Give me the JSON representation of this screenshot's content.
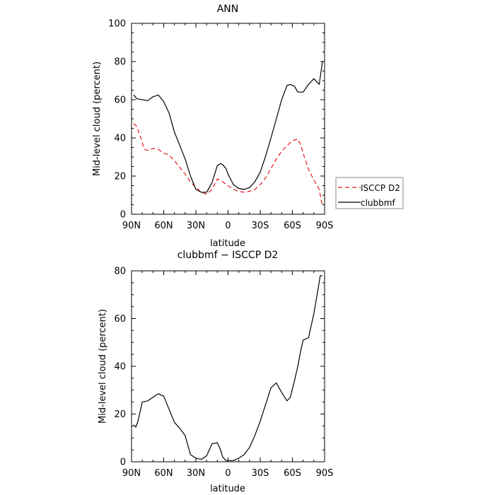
{
  "chart_data": [
    {
      "type": "line",
      "title": "ANN",
      "xlabel": "latitude",
      "ylabel": "Mid-level cloud (percent)",
      "xlim": [
        90,
        -90
      ],
      "ylim": [
        0,
        100
      ],
      "x_ticks": [
        90,
        60,
        30,
        0,
        -30,
        -60,
        -90
      ],
      "x_tick_labels": [
        "90N",
        "60N",
        "30N",
        "0",
        "30S",
        "60S",
        "90S"
      ],
      "y_ticks": [
        0,
        20,
        40,
        60,
        80,
        100
      ],
      "y_tick_labels": [
        "0",
        "20",
        "40",
        "60",
        "80",
        "100"
      ],
      "legend_position": "outside-right",
      "series": [
        {
          "name": "ISCCP D2",
          "color": "#e8141b",
          "dash": "dashed",
          "x": [
            88,
            85,
            82,
            78,
            75,
            70,
            65,
            60,
            55,
            50,
            45,
            40,
            35,
            30,
            25,
            20,
            15,
            10,
            5,
            0,
            -5,
            -10,
            -15,
            -20,
            -25,
            -30,
            -35,
            -40,
            -45,
            -50,
            -55,
            -60,
            -65,
            -68,
            -70,
            -75,
            -80,
            -85,
            -88
          ],
          "y": [
            47.5,
            46,
            41,
            34,
            33.5,
            34.5,
            34,
            32,
            31,
            28,
            24.5,
            21,
            17,
            14,
            11.5,
            10.5,
            13,
            18.5,
            17,
            15,
            13,
            12,
            11.5,
            12,
            13,
            15.5,
            19,
            24,
            29,
            33,
            36,
            38.5,
            39.5,
            36,
            32,
            23.5,
            18,
            13,
            4
          ]
        },
        {
          "name": "clubbmf",
          "color": "#000000",
          "dash": "solid",
          "x": [
            88,
            85,
            80,
            75,
            70,
            65,
            60,
            55,
            50,
            45,
            40,
            35,
            30,
            25,
            20,
            15,
            10,
            7,
            5,
            2,
            0,
            -5,
            -10,
            -15,
            -20,
            -25,
            -30,
            -35,
            -40,
            -45,
            -50,
            -55,
            -58,
            -62,
            -65,
            -70,
            -75,
            -80,
            -85,
            -88
          ],
          "y": [
            62.5,
            60.5,
            60,
            59.5,
            61.5,
            62.5,
            59,
            53,
            43,
            36,
            29,
            20,
            13,
            11.5,
            11.5,
            16.5,
            25.5,
            26.5,
            26,
            24,
            21,
            15.5,
            13.5,
            13,
            14,
            17,
            22,
            30.5,
            40,
            50,
            60,
            67.5,
            68,
            67,
            64,
            64,
            68,
            71,
            68,
            80
          ]
        }
      ]
    },
    {
      "type": "line",
      "title": "clubbmf − ISCCP D2",
      "xlabel": "latitude",
      "ylabel": "Mid-level cloud (percent)",
      "xlim": [
        90,
        -90
      ],
      "ylim": [
        0,
        80
      ],
      "x_ticks": [
        90,
        60,
        30,
        0,
        -30,
        -60,
        -90
      ],
      "x_tick_labels": [
        "90N",
        "60N",
        "30N",
        "0",
        "30S",
        "60S",
        "90S"
      ],
      "y_ticks": [
        0,
        20,
        40,
        60,
        80
      ],
      "y_tick_labels": [
        "0",
        "20",
        "40",
        "60",
        "80"
      ],
      "series": [
        {
          "color": "#000000",
          "dash": "solid",
          "x": [
            88,
            86,
            84,
            80,
            75,
            70,
            65,
            60,
            55,
            50,
            45,
            40,
            35,
            30,
            25,
            20,
            15,
            10,
            7,
            5,
            2,
            0,
            -5,
            -10,
            -15,
            -20,
            -25,
            -30,
            -35,
            -40,
            -45,
            -50,
            -55,
            -58,
            -62,
            -65,
            -68,
            -70,
            -75,
            -80,
            -83,
            -86,
            -88
          ],
          "y": [
            15.5,
            14.5,
            17,
            25,
            25.5,
            27,
            28.5,
            27.5,
            22,
            16.5,
            14,
            11,
            3,
            1.5,
            1,
            2.5,
            7.5,
            8,
            5,
            2,
            0.5,
            0.5,
            0.5,
            1.5,
            3,
            6,
            11,
            17,
            24,
            31,
            33,
            29,
            25.5,
            27,
            34,
            40,
            47,
            51,
            52,
            62,
            70,
            78,
            78
          ]
        }
      ]
    }
  ]
}
